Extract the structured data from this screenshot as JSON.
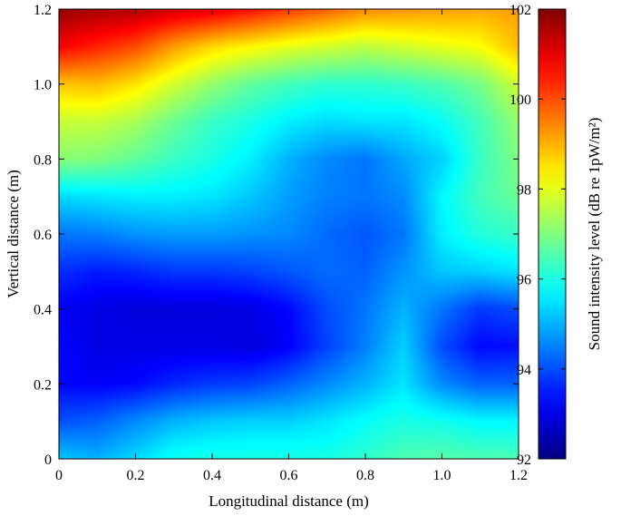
{
  "chart_data": {
    "type": "heatmap",
    "title": "",
    "xlabel": "Longitudinal distance (m)",
    "ylabel": "Vertical distance (m)",
    "xlim": [
      0,
      1.2
    ],
    "ylim": [
      0,
      1.2
    ],
    "x_ticks": [
      "0",
      "0.2",
      "0.4",
      "0.6",
      "0.8",
      "1.0",
      "1.2"
    ],
    "y_ticks": [
      "0",
      "0.2",
      "0.4",
      "0.6",
      "0.8",
      "1.0",
      "1.2"
    ],
    "colorbar": {
      "label": "Sound intensity level  (dB re 1pW/m²)",
      "range": [
        92,
        102
      ],
      "ticks": [
        "92",
        "94",
        "96",
        "98",
        "100",
        "102"
      ],
      "colormap": "jet"
    },
    "grid": false,
    "x": [
      0,
      0.1,
      0.2,
      0.3,
      0.4,
      0.5,
      0.6,
      0.7,
      0.8,
      0.9,
      1.0,
      1.1,
      1.2
    ],
    "y": [
      0,
      0.1,
      0.2,
      0.3,
      0.4,
      0.5,
      0.6,
      0.7,
      0.8,
      0.9,
      1.0,
      1.1,
      1.2
    ],
    "z": [
      [
        95.2,
        95.0,
        95.4,
        95.9,
        96.0,
        96.0,
        96.0,
        96.0,
        96.2,
        96.5,
        96.6,
        96.5,
        96.5
      ],
      [
        94.0,
        94.2,
        94.6,
        95.0,
        95.2,
        95.3,
        95.3,
        95.5,
        95.8,
        96.0,
        95.9,
        95.7,
        95.7
      ],
      [
        93.3,
        93.2,
        93.3,
        93.6,
        93.8,
        93.9,
        94.2,
        94.6,
        95.0,
        95.5,
        94.6,
        94.2,
        94.2
      ],
      [
        93.3,
        93.0,
        93.0,
        93.0,
        93.0,
        92.9,
        93.2,
        93.9,
        94.5,
        95.3,
        94.0,
        93.3,
        93.4
      ],
      [
        93.2,
        93.0,
        92.9,
        92.9,
        92.9,
        93.0,
        93.3,
        94.0,
        94.4,
        95.0,
        94.4,
        93.8,
        94.0
      ],
      [
        93.7,
        93.5,
        93.6,
        93.8,
        93.8,
        93.9,
        94.1,
        94.3,
        94.2,
        94.7,
        95.2,
        95.3,
        95.5
      ],
      [
        94.4,
        94.5,
        94.7,
        94.8,
        94.8,
        94.7,
        94.6,
        94.3,
        94.1,
        94.4,
        95.6,
        96.1,
        96.3
      ],
      [
        95.4,
        95.5,
        95.6,
        95.6,
        95.5,
        95.2,
        94.8,
        94.5,
        94.4,
        94.6,
        95.7,
        96.4,
        96.8
      ],
      [
        97.1,
        97.0,
        96.7,
        96.3,
        96.0,
        95.6,
        95.0,
        94.6,
        94.4,
        94.9,
        95.3,
        96.3,
        97.0
      ],
      [
        97.7,
        97.7,
        97.4,
        96.8,
        96.3,
        96.0,
        95.6,
        95.4,
        95.5,
        95.5,
        95.8,
        96.4,
        97.2
      ],
      [
        98.8,
        98.9,
        98.5,
        97.8,
        97.2,
        96.7,
        96.4,
        96.2,
        96.2,
        96.3,
        96.5,
        96.9,
        97.8
      ],
      [
        100.8,
        100.4,
        100.0,
        99.2,
        98.6,
        98.3,
        98.0,
        97.8,
        97.6,
        97.8,
        98.0,
        98.2,
        98.9
      ],
      [
        101.8,
        101.6,
        101.5,
        101.2,
        101.0,
        100.6,
        100.2,
        99.8,
        99.4,
        99.3,
        99.2,
        99.1,
        99.2
      ]
    ]
  }
}
